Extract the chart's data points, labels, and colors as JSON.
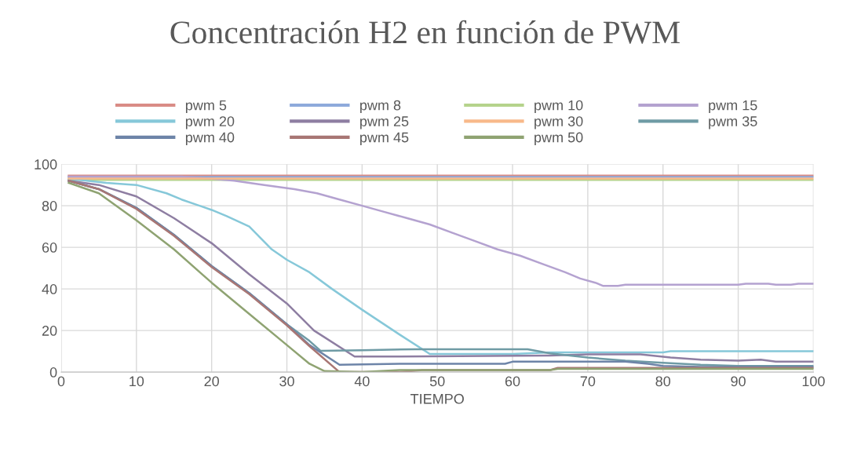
{
  "chart_data": {
    "type": "line",
    "title": "Concentración H2 en función de PWM",
    "xlabel": "TIEMPO",
    "xlim": [
      0,
      100
    ],
    "xticks": [
      0,
      10,
      20,
      30,
      40,
      50,
      60,
      70,
      80,
      90,
      100
    ],
    "ylim": [
      0,
      100
    ],
    "yticks": [
      0,
      20,
      40,
      60,
      80,
      100
    ],
    "grid": true,
    "legend": "top",
    "marker": "none",
    "line_style": "solid",
    "series": [
      {
        "name": "pwm 5",
        "color": "#d98c86",
        "x": [
          1,
          100
        ],
        "values": [
          94.5,
          94.5
        ]
      },
      {
        "name": "pwm 8",
        "color": "#8eaadb",
        "x": [
          1,
          100
        ],
        "values": [
          93.8,
          93.8
        ]
      },
      {
        "name": "pwm 10",
        "color": "#b5d38c",
        "x": [
          1,
          100
        ],
        "values": [
          92.4,
          92.4
        ]
      },
      {
        "name": "pwm 15",
        "color": "#b4a2d0",
        "x": [
          1,
          16,
          20,
          23,
          27,
          31,
          34,
          37,
          40,
          43,
          46,
          49,
          52,
          55,
          58,
          61,
          64,
          67,
          69,
          71,
          72,
          74,
          75,
          90,
          91,
          94,
          95,
          97,
          98,
          100
        ],
        "values": [
          94,
          94,
          93,
          92,
          90,
          88,
          86,
          83,
          80,
          77,
          74,
          71,
          67,
          63,
          59,
          56,
          52,
          48,
          45,
          43,
          41.5,
          41.5,
          42,
          42,
          42.5,
          42.5,
          42,
          42,
          42.5,
          42.5
        ]
      },
      {
        "name": "pwm 20",
        "color": "#86c8d9",
        "x": [
          1,
          6,
          10,
          14,
          16,
          20,
          22,
          25,
          28,
          30,
          33,
          36,
          40,
          45,
          49,
          60,
          65,
          80,
          81,
          100
        ],
        "values": [
          93,
          91,
          90,
          86,
          83,
          78,
          75,
          70,
          59,
          54,
          48,
          40,
          30,
          18,
          8.7,
          8.7,
          9.5,
          9.5,
          10,
          10
        ]
      },
      {
        "name": "pwm 25",
        "color": "#8e7ea2",
        "x": [
          1,
          5,
          10,
          15,
          20,
          25,
          30,
          33.6,
          39,
          45,
          65,
          70,
          77,
          81,
          85,
          90,
          93,
          95,
          100
        ],
        "values": [
          92,
          90,
          84.5,
          74,
          62,
          47,
          33,
          20,
          7.5,
          7.5,
          8,
          8.5,
          8.5,
          7,
          6,
          5.5,
          6,
          5,
          5
        ]
      },
      {
        "name": "pwm 30",
        "color": "#f8b98a",
        "x": [
          1,
          100
        ],
        "values": [
          93.1,
          93.1
        ]
      },
      {
        "name": "pwm 35",
        "color": "#6f9ba5",
        "x": [
          1,
          5,
          10,
          15,
          20,
          25,
          30,
          33,
          34.5,
          40,
          47,
          62,
          65,
          70,
          75,
          80,
          85,
          90,
          100
        ],
        "values": [
          92,
          88,
          79,
          66,
          51,
          38,
          23,
          15,
          10.2,
          10.5,
          11,
          11,
          9,
          7,
          5.5,
          4.5,
          3.5,
          3,
          3
        ]
      },
      {
        "name": "pwm 40",
        "color": "#6d84a8",
        "x": [
          1,
          5,
          10,
          15,
          20,
          25,
          30,
          33,
          37,
          45,
          59,
          60,
          75,
          78,
          80,
          85,
          100
        ],
        "values": [
          92,
          88,
          79,
          66,
          51,
          38,
          23,
          13,
          3.5,
          4,
          4,
          5,
          5,
          4,
          3,
          2.5,
          2.5
        ]
      },
      {
        "name": "pwm 45",
        "color": "#a87674",
        "x": [
          1,
          5,
          10,
          15,
          20,
          25,
          30,
          33,
          37,
          45,
          48,
          65,
          66,
          100
        ],
        "values": [
          92,
          88,
          78.5,
          65.5,
          50.5,
          37.5,
          22.5,
          12.5,
          0,
          0,
          1,
          1,
          2,
          2
        ]
      },
      {
        "name": "pwm 50",
        "color": "#8fa372",
        "x": [
          1,
          5,
          10,
          15,
          20,
          25,
          30,
          33,
          35,
          40,
          45,
          65,
          66,
          100
        ],
        "values": [
          91,
          86,
          73,
          59,
          43,
          28,
          13,
          4,
          0.5,
          0,
          1,
          1,
          1.5,
          1.5
        ]
      }
    ]
  }
}
